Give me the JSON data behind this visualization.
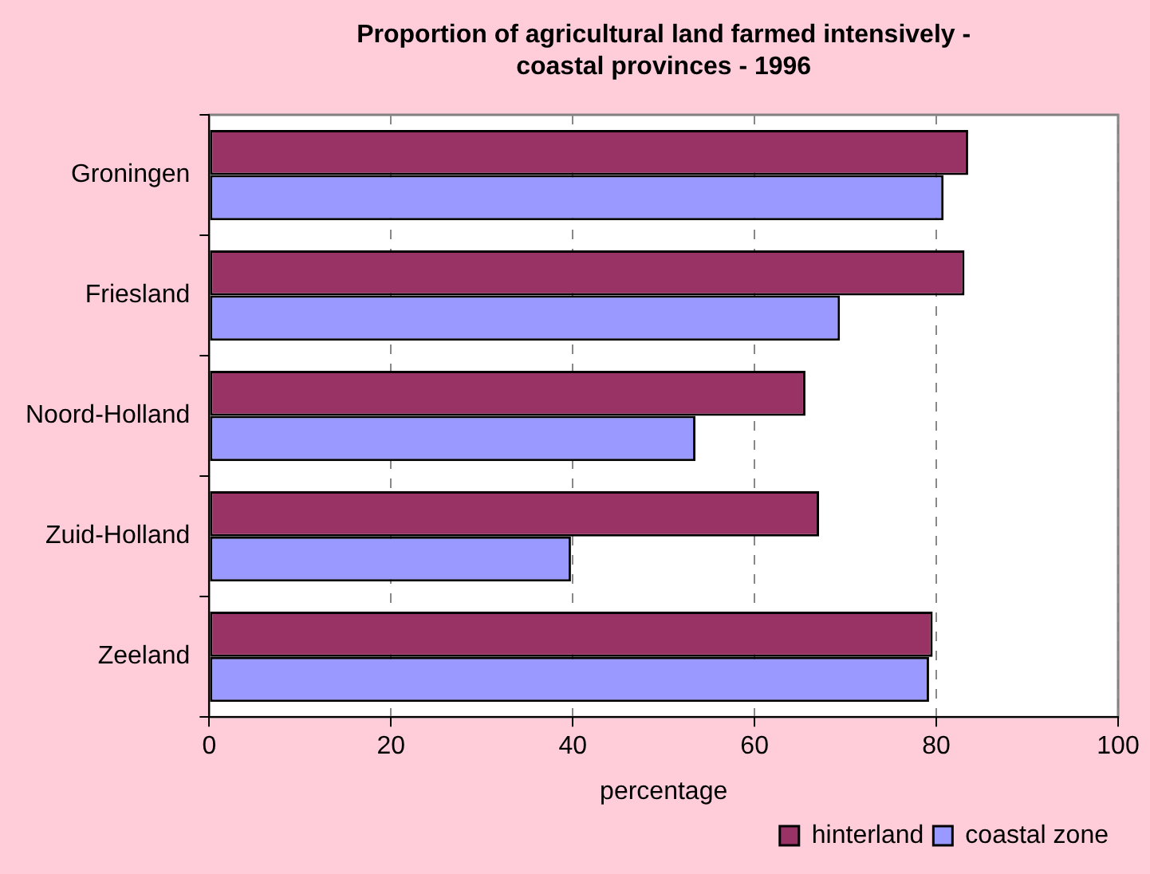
{
  "chart_data": {
    "type": "bar",
    "orientation": "horizontal",
    "title": "Proportion of agricultural land farmed intensively - coastal provinces - 1996",
    "xlabel": "percentage",
    "categories": [
      "Groningen",
      "Friesland",
      "Noord-Holland",
      "Zuid-Holland",
      "Zeeland"
    ],
    "series": [
      {
        "name": "hinterland",
        "color": "#993366",
        "values": [
          83.5,
          83.1,
          65.6,
          67.1,
          79.6
        ]
      },
      {
        "name": "coastal zone",
        "color": "#9999ff",
        "values": [
          80.8,
          69.4,
          53.5,
          39.8,
          79.2
        ]
      }
    ],
    "xlim": [
      0,
      100
    ],
    "xticks": [
      0,
      20,
      40,
      60,
      80,
      100
    ],
    "grid": "x",
    "legend": "bottom right"
  }
}
